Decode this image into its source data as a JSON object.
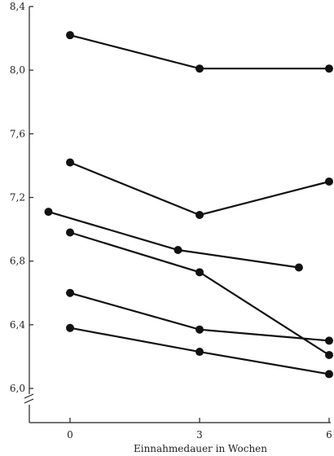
{
  "chart_data": {
    "type": "line",
    "title": "",
    "xlabel": "Einnahmedauer in Wochen",
    "ylabel": "",
    "x_ticks": [
      "0",
      "3",
      "6"
    ],
    "y_ticks": [
      "6,0",
      "6,4",
      "6,8",
      "7,2",
      "7,6",
      "8,0",
      "8,4"
    ],
    "xlim": [
      -0.9,
      6.1
    ],
    "ylim": [
      5.98,
      8.42
    ],
    "axis_break": true,
    "grid": false,
    "legend": "none",
    "series": [
      {
        "points": [
          {
            "x": 0,
            "y": 8.22
          },
          {
            "x": 3,
            "y": 8.01
          },
          {
            "x": 6,
            "y": 8.01
          }
        ]
      },
      {
        "points": [
          {
            "x": 0,
            "y": 7.42
          },
          {
            "x": 3,
            "y": 7.09
          },
          {
            "x": 6,
            "y": 7.3
          }
        ]
      },
      {
        "points": [
          {
            "x": -0.5,
            "y": 7.11
          },
          {
            "x": 2.5,
            "y": 6.87
          },
          {
            "x": 5.3,
            "y": 6.76
          }
        ]
      },
      {
        "points": [
          {
            "x": 0,
            "y": 6.98
          },
          {
            "x": 3,
            "y": 6.73
          },
          {
            "x": 6,
            "y": 6.21
          }
        ]
      },
      {
        "points": [
          {
            "x": 0,
            "y": 6.6
          },
          {
            "x": 3,
            "y": 6.37
          },
          {
            "x": 6,
            "y": 6.3
          }
        ]
      },
      {
        "points": [
          {
            "x": 0,
            "y": 6.38
          },
          {
            "x": 3,
            "y": 6.23
          },
          {
            "x": 6,
            "y": 6.09
          }
        ]
      }
    ]
  }
}
